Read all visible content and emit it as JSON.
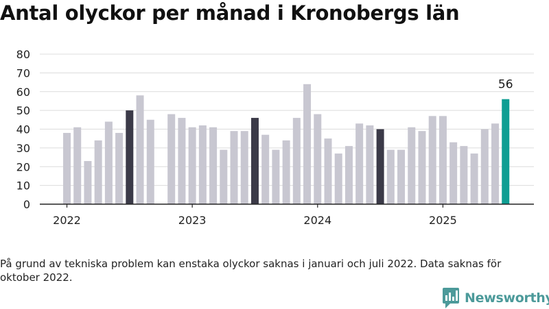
{
  "title": "Antal olyckor per månad i Kronobergs län",
  "note": "På grund av tekniska problem kan enstaka olyckor saknas i januari och juli 2022. Data saknas för oktober 2022.",
  "brand": {
    "name": "Newsworthy",
    "icon": "newsworthy-logo-icon",
    "color": "#4c9a9a"
  },
  "colors": {
    "normal": "#c8c7d1",
    "july": "#3b3a48",
    "latest": "#0f9e93",
    "grid": "#dcdcdc",
    "axis": "#222222"
  },
  "chart_data": {
    "type": "bar",
    "title": "Antal olyckor per månad i Kronobergs län",
    "xlabel": "",
    "ylabel": "",
    "ylim": [
      0,
      80
    ],
    "yticks": [
      "0",
      "10",
      "20",
      "30",
      "40",
      "50",
      "60",
      "70",
      "80"
    ],
    "xticks": [
      "2022",
      "2023",
      "2024",
      "2025"
    ],
    "grid": true,
    "highlight_label": "56",
    "categories": [
      "2022-01",
      "2022-02",
      "2022-03",
      "2022-04",
      "2022-05",
      "2022-06",
      "2022-07",
      "2022-08",
      "2022-09",
      "2022-10",
      "2022-11",
      "2022-12",
      "2023-01",
      "2023-02",
      "2023-03",
      "2023-04",
      "2023-05",
      "2023-06",
      "2023-07",
      "2023-08",
      "2023-09",
      "2023-10",
      "2023-11",
      "2023-12",
      "2024-01",
      "2024-02",
      "2024-03",
      "2024-04",
      "2024-05",
      "2024-06",
      "2024-07",
      "2024-08",
      "2024-09",
      "2024-10",
      "2024-11",
      "2024-12",
      "2025-01",
      "2025-02",
      "2025-03",
      "2025-04",
      "2025-05",
      "2025-06",
      "2025-07"
    ],
    "values": [
      38,
      41,
      23,
      34,
      44,
      38,
      50,
      58,
      45,
      null,
      48,
      46,
      41,
      42,
      41,
      29,
      39,
      39,
      46,
      37,
      29,
      34,
      46,
      64,
      48,
      35,
      27,
      31,
      43,
      42,
      40,
      29,
      29,
      41,
      39,
      47,
      47,
      33,
      31,
      27,
      40,
      43,
      56
    ],
    "bar_kinds": [
      "normal",
      "normal",
      "normal",
      "normal",
      "normal",
      "normal",
      "july",
      "normal",
      "normal",
      "missing",
      "normal",
      "normal",
      "normal",
      "normal",
      "normal",
      "normal",
      "normal",
      "normal",
      "july",
      "normal",
      "normal",
      "normal",
      "normal",
      "normal",
      "normal",
      "normal",
      "normal",
      "normal",
      "normal",
      "normal",
      "july",
      "normal",
      "normal",
      "normal",
      "normal",
      "normal",
      "normal",
      "normal",
      "normal",
      "normal",
      "normal",
      "normal",
      "latest"
    ]
  }
}
